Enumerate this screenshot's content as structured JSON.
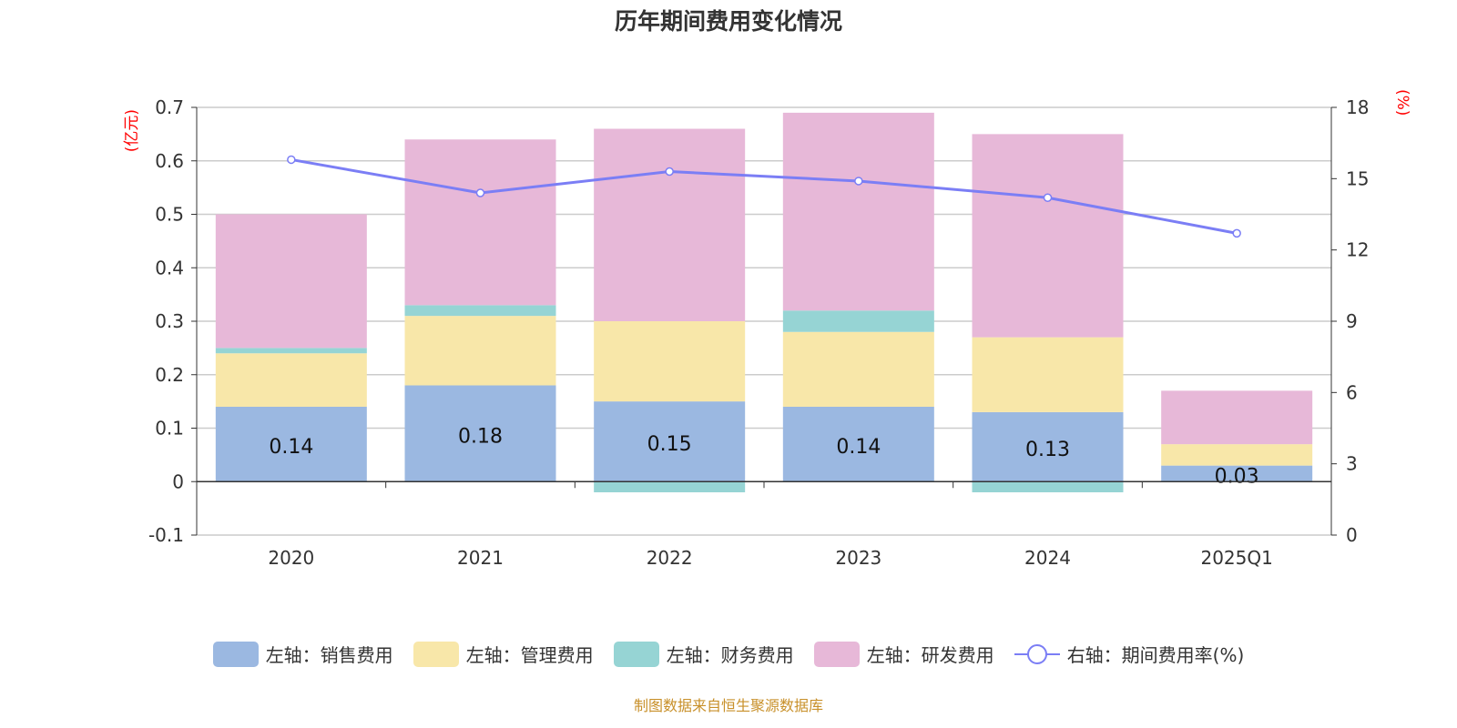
{
  "chart_data": {
    "type": "bar",
    "title": "历年期间费用变化情况",
    "categories": [
      "2020",
      "2021",
      "2022",
      "2023",
      "2024",
      "2025Q1"
    ],
    "left_axis": {
      "unit_label": "(亿元)",
      "ylim": [
        -0.1,
        0.7
      ],
      "ticks": [
        "-0.1",
        "0",
        "0.1",
        "0.2",
        "0.3",
        "0.4",
        "0.5",
        "0.6",
        "0.7"
      ]
    },
    "right_axis": {
      "unit_label": "(%)",
      "ylim": [
        0,
        18
      ],
      "ticks": [
        "0",
        "3",
        "6",
        "9",
        "12",
        "15",
        "18"
      ]
    },
    "series": [
      {
        "name": "左轴：销售费用",
        "kind": "bar",
        "color": "#9bb8e1",
        "values": [
          0.14,
          0.18,
          0.15,
          0.14,
          0.13,
          0.03
        ],
        "labels": [
          "0.14",
          "0.18",
          "0.15",
          "0.14",
          "0.13",
          "0.03"
        ]
      },
      {
        "name": "左轴：管理费用",
        "kind": "bar",
        "color": "#f8e7a9",
        "values": [
          0.1,
          0.13,
          0.15,
          0.14,
          0.14,
          0.04
        ]
      },
      {
        "name": "左轴：财务费用",
        "kind": "bar",
        "color": "#96d4d4",
        "values": [
          0.01,
          0.02,
          -0.02,
          0.04,
          -0.02,
          0.0
        ]
      },
      {
        "name": "左轴：研发费用",
        "kind": "bar",
        "color": "#e7b8d8",
        "values": [
          0.25,
          0.31,
          0.36,
          0.37,
          0.38,
          0.1
        ]
      },
      {
        "name": "右轴：期间费用率(%)",
        "kind": "line",
        "color": "#7b7ef5",
        "values": [
          15.8,
          14.4,
          15.3,
          14.9,
          14.2,
          12.7
        ]
      }
    ],
    "grid": true,
    "legend_position": "bottom"
  },
  "footer": "制图数据来自恒生聚源数据库"
}
